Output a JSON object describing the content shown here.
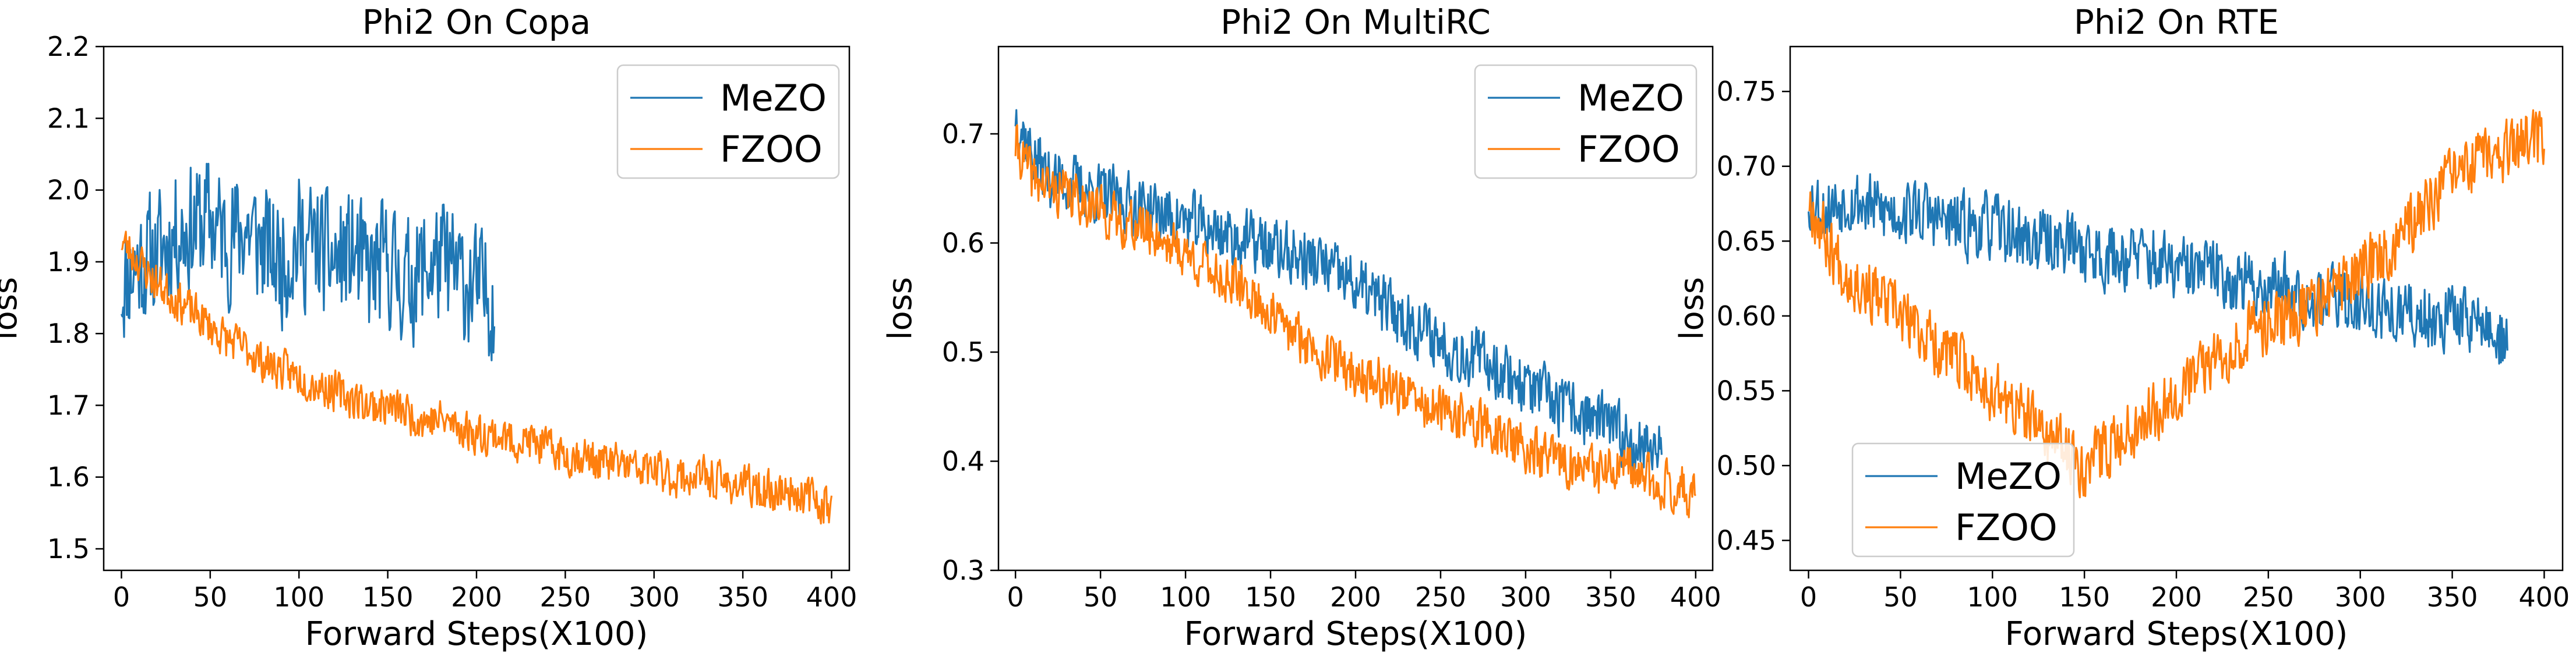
{
  "chart_data": [
    {
      "type": "line",
      "title": "Phi2 On Copa",
      "xlabel": "Forward Steps(X100)",
      "ylabel": "loss",
      "xlim": [
        -10,
        410
      ],
      "ylim": [
        1.47,
        2.2
      ],
      "xticks": [
        0,
        50,
        100,
        150,
        200,
        250,
        300,
        350,
        400
      ],
      "yticks": [
        1.5,
        1.6,
        1.7,
        1.8,
        1.9,
        2.0,
        2.1,
        2.2
      ],
      "ytick_labels": [
        "1.5",
        "1.6",
        "1.7",
        "1.8",
        "1.9",
        "2.0",
        "2.1",
        "2.2"
      ],
      "legend": "top-right",
      "series": [
        {
          "name": "MeZO",
          "color": "#1f77b4",
          "x": [
            0,
            10,
            20,
            30,
            40,
            50,
            60,
            70,
            80,
            90,
            100,
            110,
            120,
            130,
            140,
            150,
            160,
            170,
            180,
            190,
            200,
            210
          ],
          "y": [
            1.87,
            1.9,
            1.91,
            1.94,
            1.95,
            1.96,
            1.93,
            1.95,
            1.92,
            1.9,
            1.93,
            1.92,
            1.9,
            1.91,
            1.88,
            1.9,
            1.87,
            1.89,
            1.9,
            1.88,
            1.86,
            1.85
          ],
          "noise": 0.11,
          "seed": 11
        },
        {
          "name": "FZOO",
          "color": "#ff7f0e",
          "x": [
            0,
            10,
            20,
            30,
            40,
            50,
            60,
            70,
            80,
            90,
            100,
            110,
            120,
            130,
            140,
            150,
            160,
            170,
            180,
            190,
            200,
            210,
            220,
            230,
            240,
            250,
            260,
            270,
            280,
            290,
            300,
            310,
            320,
            330,
            340,
            350,
            360,
            370,
            380,
            390,
            400
          ],
          "y": [
            1.93,
            1.9,
            1.87,
            1.85,
            1.83,
            1.81,
            1.79,
            1.78,
            1.76,
            1.75,
            1.74,
            1.73,
            1.72,
            1.71,
            1.7,
            1.7,
            1.69,
            1.68,
            1.68,
            1.67,
            1.66,
            1.66,
            1.65,
            1.65,
            1.64,
            1.63,
            1.63,
            1.62,
            1.62,
            1.61,
            1.61,
            1.6,
            1.6,
            1.6,
            1.59,
            1.59,
            1.58,
            1.58,
            1.58,
            1.57,
            1.56
          ],
          "noise": 0.035,
          "seed": 23
        }
      ]
    },
    {
      "type": "line",
      "title": "Phi2 On MultiRC",
      "xlabel": "Forward Steps(X100)",
      "ylabel": "loss",
      "xlim": [
        -10,
        410
      ],
      "ylim": [
        0.3,
        0.78
      ],
      "xticks": [
        0,
        50,
        100,
        150,
        200,
        250,
        300,
        350,
        400
      ],
      "yticks": [
        0.3,
        0.4,
        0.5,
        0.6,
        0.7
      ],
      "ytick_labels": [
        "0.3",
        "0.4",
        "0.5",
        "0.6",
        "0.7"
      ],
      "legend": "top-right",
      "series": [
        {
          "name": "MeZO",
          "color": "#1f77b4",
          "x": [
            0,
            10,
            20,
            40,
            60,
            80,
            100,
            120,
            140,
            160,
            180,
            200,
            220,
            240,
            260,
            280,
            300,
            320,
            340,
            360,
            380
          ],
          "y": [
            0.72,
            0.68,
            0.66,
            0.65,
            0.64,
            0.63,
            0.62,
            0.61,
            0.6,
            0.59,
            0.58,
            0.56,
            0.54,
            0.52,
            0.5,
            0.49,
            0.47,
            0.45,
            0.44,
            0.42,
            0.41
          ],
          "noise": 0.035,
          "seed": 37
        },
        {
          "name": "FZOO",
          "color": "#ff7f0e",
          "x": [
            0,
            10,
            20,
            40,
            60,
            80,
            100,
            120,
            140,
            160,
            180,
            200,
            220,
            240,
            260,
            280,
            300,
            320,
            340,
            360,
            380,
            400
          ],
          "y": [
            0.69,
            0.66,
            0.65,
            0.64,
            0.62,
            0.61,
            0.59,
            0.57,
            0.55,
            0.52,
            0.5,
            0.48,
            0.47,
            0.45,
            0.44,
            0.43,
            0.41,
            0.4,
            0.39,
            0.39,
            0.38,
            0.37
          ],
          "noise": 0.028,
          "seed": 41
        }
      ]
    },
    {
      "type": "line",
      "title": "Phi2 On RTE",
      "xlabel": "Forward Steps(X100)",
      "ylabel": "loss",
      "xlim": [
        -10,
        410
      ],
      "ylim": [
        0.43,
        0.78
      ],
      "xticks": [
        0,
        50,
        100,
        150,
        200,
        250,
        300,
        350,
        400
      ],
      "yticks": [
        0.45,
        0.5,
        0.55,
        0.6,
        0.65,
        0.7,
        0.75
      ],
      "ytick_labels": [
        "0.45",
        "0.50",
        "0.55",
        "0.60",
        "0.65",
        "0.70",
        "0.75"
      ],
      "legend": "bottom-left",
      "series": [
        {
          "name": "MeZO",
          "color": "#1f77b4",
          "x": [
            0,
            10,
            20,
            40,
            60,
            80,
            100,
            120,
            140,
            160,
            180,
            200,
            220,
            240,
            260,
            280,
            300,
            320,
            340,
            360,
            380
          ],
          "y": [
            0.68,
            0.67,
            0.68,
            0.67,
            0.67,
            0.66,
            0.66,
            0.65,
            0.65,
            0.64,
            0.64,
            0.63,
            0.63,
            0.62,
            0.62,
            0.61,
            0.61,
            0.6,
            0.6,
            0.6,
            0.58
          ],
          "noise": 0.028,
          "seed": 53
        },
        {
          "name": "FZOO",
          "color": "#ff7f0e",
          "x": [
            0,
            10,
            20,
            40,
            60,
            80,
            100,
            120,
            140,
            150,
            160,
            180,
            200,
            220,
            240,
            260,
            280,
            300,
            320,
            340,
            360,
            380,
            400
          ],
          "y": [
            0.68,
            0.65,
            0.63,
            0.61,
            0.59,
            0.57,
            0.55,
            0.53,
            0.51,
            0.5,
            0.51,
            0.53,
            0.55,
            0.57,
            0.59,
            0.6,
            0.61,
            0.63,
            0.65,
            0.68,
            0.7,
            0.71,
            0.72
          ],
          "noise": 0.026,
          "seed": 67
        }
      ]
    }
  ]
}
